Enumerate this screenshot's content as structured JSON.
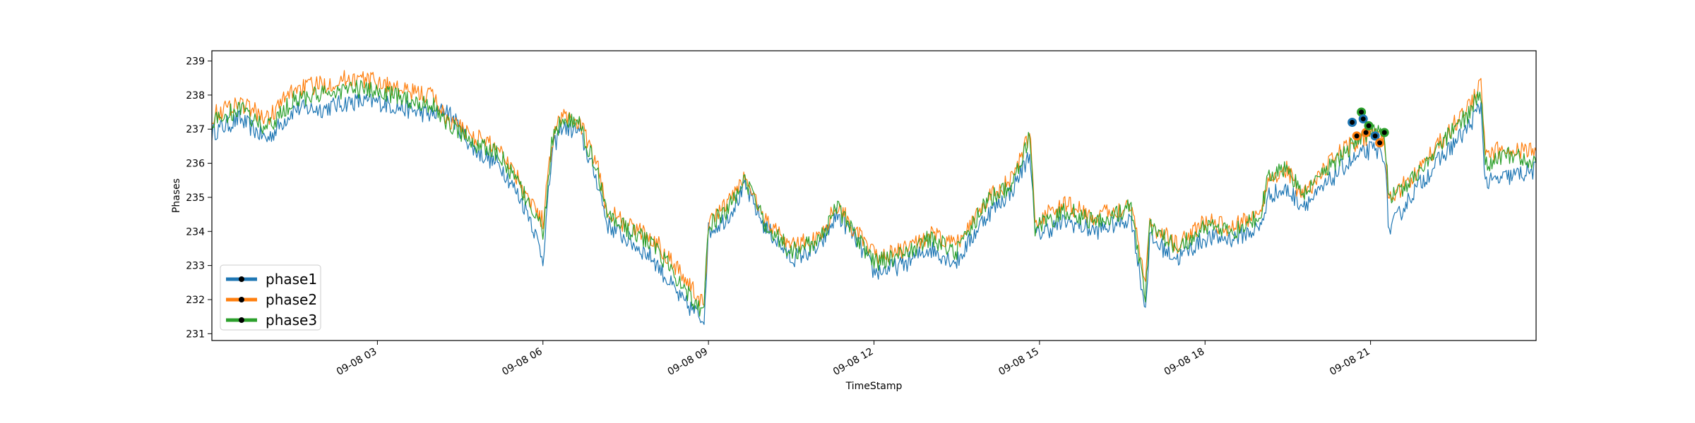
{
  "chart_data": {
    "type": "line",
    "xlabel": "TimeStamp",
    "ylabel": "Phases",
    "x_start": "09-08 00:00",
    "x_end": "09-09 00:00",
    "xlim": [
      "09-08 00:00",
      "09-09 00:00"
    ],
    "ylim": [
      230.8,
      239.3
    ],
    "x_ticks": [
      "09-08 03",
      "09-08 06",
      "09-08 09",
      "09-08 12",
      "09-08 15",
      "09-08 18",
      "09-08 21"
    ],
    "y_ticks": [
      231,
      232,
      233,
      234,
      235,
      236,
      237,
      238,
      239
    ],
    "grid": false,
    "legend_position": "lower-left",
    "series": [
      {
        "name": "phase1",
        "color": "#1f77b4",
        "x": [
          "09-08 00:00",
          "09-08 00:30",
          "09-08 01:00",
          "09-08 01:30",
          "09-08 02:00",
          "09-08 02:30",
          "09-08 03:00",
          "09-08 03:30",
          "09-08 04:00",
          "09-08 04:15",
          "09-08 04:45",
          "09-08 05:15",
          "09-08 05:45",
          "09-08 06:00",
          "09-08 06:10",
          "09-08 06:20",
          "09-08 06:40",
          "09-08 07:00",
          "09-08 07:10",
          "09-08 07:30",
          "09-08 08:00",
          "09-08 08:30",
          "09-08 08:55",
          "09-08 09:00",
          "09-08 09:20",
          "09-08 09:40",
          "09-08 10:00",
          "09-08 10:30",
          "09-08 11:00",
          "09-08 11:20",
          "09-08 11:40",
          "09-08 12:00",
          "09-08 12:30",
          "09-08 13:00",
          "09-08 13:30",
          "09-08 14:00",
          "09-08 14:30",
          "09-08 14:50",
          "09-08 14:55",
          "09-08 15:30",
          "09-08 16:00",
          "09-08 16:40",
          "09-08 16:55",
          "09-08 17:00",
          "09-08 17:30",
          "09-08 18:00",
          "09-08 18:30",
          "09-08 19:00",
          "09-08 19:10",
          "09-08 19:30",
          "09-08 19:45",
          "09-08 20:00",
          "09-08 20:30",
          "09-08 21:00",
          "09-08 21:15",
          "09-08 21:20",
          "09-08 21:45",
          "09-08 22:15",
          "09-08 22:45",
          "09-08 23:00",
          "09-08 23:05",
          "09-08 23:30",
          "09-08 24:00"
        ],
        "values": [
          236.9,
          237.3,
          236.7,
          237.6,
          237.6,
          237.8,
          237.8,
          237.6,
          237.4,
          237.6,
          236.4,
          235.9,
          234.5,
          233.2,
          236.3,
          237.1,
          236.9,
          235.4,
          234.2,
          233.8,
          233.2,
          232.0,
          231.4,
          234.0,
          234.4,
          235.3,
          234.2,
          233.2,
          233.5,
          234.5,
          233.8,
          232.8,
          233.0,
          233.5,
          233.1,
          234.4,
          235.2,
          236.3,
          233.9,
          234.3,
          234.0,
          234.4,
          231.7,
          233.8,
          233.2,
          233.8,
          233.8,
          234.1,
          235.1,
          235.2,
          234.8,
          235.0,
          235.9,
          236.4,
          236.3,
          234.0,
          235.1,
          236.1,
          237.0,
          237.7,
          235.4,
          235.6,
          235.8
        ]
      },
      {
        "name": "phase2",
        "color": "#ff7f0e",
        "x": [
          "09-08 00:00",
          "09-08 00:30",
          "09-08 01:00",
          "09-08 01:30",
          "09-08 02:00",
          "09-08 02:30",
          "09-08 03:00",
          "09-08 03:30",
          "09-08 04:00",
          "09-08 04:15",
          "09-08 04:45",
          "09-08 05:15",
          "09-08 05:45",
          "09-08 06:00",
          "09-08 06:10",
          "09-08 06:20",
          "09-08 06:40",
          "09-08 07:00",
          "09-08 07:10",
          "09-08 07:30",
          "09-08 08:00",
          "09-08 08:30",
          "09-08 08:55",
          "09-08 09:00",
          "09-08 09:20",
          "09-08 09:40",
          "09-08 10:00",
          "09-08 10:30",
          "09-08 11:00",
          "09-08 11:20",
          "09-08 11:40",
          "09-08 12:00",
          "09-08 12:30",
          "09-08 13:00",
          "09-08 13:30",
          "09-08 14:00",
          "09-08 14:30",
          "09-08 14:50",
          "09-08 14:55",
          "09-08 15:30",
          "09-08 16:00",
          "09-08 16:40",
          "09-08 16:55",
          "09-08 17:00",
          "09-08 17:30",
          "09-08 18:00",
          "09-08 18:30",
          "09-08 19:00",
          "09-08 19:10",
          "09-08 19:30",
          "09-08 19:45",
          "09-08 20:00",
          "09-08 20:30",
          "09-08 21:00",
          "09-08 21:15",
          "09-08 21:20",
          "09-08 21:45",
          "09-08 22:15",
          "09-08 22:45",
          "09-08 23:00",
          "09-08 23:05",
          "09-08 23:30",
          "09-08 24:00"
        ],
        "values": [
          237.4,
          237.8,
          237.3,
          238.2,
          238.3,
          238.5,
          238.4,
          238.1,
          238.0,
          237.3,
          236.8,
          236.4,
          235.0,
          234.3,
          236.7,
          237.4,
          237.2,
          235.8,
          234.6,
          234.2,
          233.8,
          232.8,
          231.8,
          234.3,
          234.8,
          235.6,
          234.4,
          233.6,
          233.8,
          234.8,
          234.0,
          233.3,
          233.4,
          233.9,
          233.6,
          234.9,
          235.5,
          236.9,
          234.3,
          234.8,
          234.4,
          234.8,
          232.6,
          234.2,
          233.6,
          234.3,
          234.1,
          234.6,
          235.6,
          235.8,
          235.0,
          235.5,
          236.4,
          236.8,
          236.7,
          234.9,
          235.6,
          236.6,
          237.6,
          238.3,
          236.2,
          236.5,
          236.3
        ]
      },
      {
        "name": "phase3",
        "color": "#2ca02c",
        "x": [
          "09-08 00:00",
          "09-08 00:30",
          "09-08 01:00",
          "09-08 01:30",
          "09-08 02:00",
          "09-08 02:30",
          "09-08 03:00",
          "09-08 03:30",
          "09-08 04:00",
          "09-08 04:15",
          "09-08 04:45",
          "09-08 05:15",
          "09-08 05:45",
          "09-08 06:00",
          "09-08 06:10",
          "09-08 06:20",
          "09-08 06:40",
          "09-08 07:00",
          "09-08 07:10",
          "09-08 07:30",
          "09-08 08:00",
          "09-08 08:30",
          "09-08 08:55",
          "09-08 09:00",
          "09-08 09:20",
          "09-08 09:40",
          "09-08 10:00",
          "09-08 10:30",
          "09-08 11:00",
          "09-08 11:20",
          "09-08 11:40",
          "09-08 12:00",
          "09-08 12:30",
          "09-08 13:00",
          "09-08 13:30",
          "09-08 14:00",
          "09-08 14:30",
          "09-08 14:50",
          "09-08 14:55",
          "09-08 15:30",
          "09-08 16:00",
          "09-08 16:40",
          "09-08 16:55",
          "09-08 17:00",
          "09-08 17:30",
          "09-08 18:00",
          "09-08 18:30",
          "09-08 19:00",
          "09-08 19:10",
          "09-08 19:30",
          "09-08 19:45",
          "09-08 20:00",
          "09-08 20:30",
          "09-08 21:00",
          "09-08 21:15",
          "09-08 21:20",
          "09-08 21:45",
          "09-08 22:15",
          "09-08 22:45",
          "09-08 23:00",
          "09-08 23:05",
          "09-08 23:30",
          "09-08 24:00"
        ],
        "values": [
          237.2,
          237.6,
          237.0,
          237.9,
          238.0,
          238.2,
          238.1,
          237.9,
          237.7,
          237.2,
          236.6,
          236.2,
          234.8,
          234.0,
          236.6,
          237.3,
          237.1,
          235.7,
          234.5,
          234.1,
          233.6,
          232.5,
          231.6,
          234.2,
          234.6,
          235.5,
          234.3,
          233.4,
          233.7,
          234.7,
          233.9,
          233.1,
          233.3,
          233.8,
          233.4,
          234.8,
          235.4,
          236.8,
          234.1,
          234.6,
          234.3,
          234.7,
          232.1,
          234.1,
          233.5,
          234.1,
          234.0,
          234.5,
          235.7,
          235.8,
          235.1,
          235.4,
          236.3,
          237.0,
          236.9,
          235.0,
          235.5,
          236.5,
          237.4,
          238.1,
          236.0,
          236.2,
          236.1
        ]
      }
    ],
    "markers": {
      "x": [
        "09-08 20:40",
        "09-08 20:45",
        "09-08 20:50",
        "09-08 20:52",
        "09-08 20:55",
        "09-08 20:58",
        "09-08 21:05",
        "09-08 21:10",
        "09-08 21:15"
      ],
      "values": [
        237.2,
        236.8,
        237.5,
        237.3,
        236.9,
        237.1,
        236.8,
        236.6,
        236.9
      ]
    }
  }
}
